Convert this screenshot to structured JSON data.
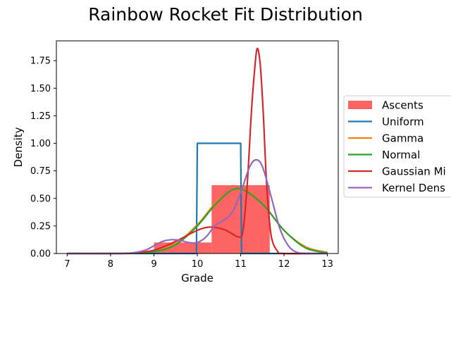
{
  "chart_data": {
    "type": "line",
    "title": "Rainbow Rocket Fit Distribution",
    "xlabel": "Grade",
    "ylabel": "Density",
    "xlim": [
      6.75,
      13.25
    ],
    "ylim": [
      0,
      1.93
    ],
    "xticks": [
      7,
      8,
      9,
      10,
      11,
      12,
      13
    ],
    "yticks": [
      0.0,
      0.25,
      0.5,
      0.75,
      1.0,
      1.25,
      1.5,
      1.75
    ],
    "grid": false,
    "legend_position": "right, outside plot",
    "histogram": {
      "name": "Ascents",
      "color": "#ff6464",
      "bins": [
        {
          "x0": 9.0,
          "x1": 10.33,
          "density": 0.1
        },
        {
          "x0": 10.33,
          "x1": 11.67,
          "density": 0.62
        }
      ]
    },
    "series": [
      {
        "name": "Uniform",
        "color": "#1f77b4",
        "x": [
          7.0,
          9.98,
          10.0,
          10.02,
          10.98,
          11.0,
          11.02,
          13.0
        ],
        "y": [
          0,
          0,
          1.0,
          1.0,
          1.0,
          1.0,
          0,
          0
        ]
      },
      {
        "name": "Gamma",
        "color": "#ff7f0e",
        "x": [
          7.0,
          8.0,
          8.5,
          9.0,
          9.5,
          10.0,
          10.5,
          11.0,
          11.5,
          12.0,
          12.5,
          13.0
        ],
        "y": [
          0.0,
          0.0,
          0.002,
          0.02,
          0.09,
          0.26,
          0.49,
          0.59,
          0.45,
          0.21,
          0.06,
          0.01
        ]
      },
      {
        "name": "Normal",
        "color": "#2ca02c",
        "x": [
          7.0,
          8.0,
          8.5,
          9.0,
          9.5,
          10.0,
          10.5,
          10.95,
          11.5,
          12.0,
          12.5,
          13.0
        ],
        "y": [
          0.0,
          0.0,
          0.002,
          0.016,
          0.08,
          0.25,
          0.48,
          0.59,
          0.45,
          0.21,
          0.05,
          0.006
        ]
      },
      {
        "name": "Gaussian Mi",
        "color": "#d62728",
        "x": [
          7.0,
          8.0,
          8.5,
          9.0,
          9.5,
          10.0,
          10.3,
          10.6,
          10.8,
          10.95,
          11.05,
          11.15,
          11.25,
          11.32,
          11.38,
          11.45,
          11.52,
          11.6,
          11.7,
          11.85,
          12.0,
          13.0
        ],
        "y": [
          0.0,
          0.0,
          0.004,
          0.03,
          0.11,
          0.21,
          0.24,
          0.22,
          0.18,
          0.15,
          0.2,
          0.62,
          1.3,
          1.66,
          1.86,
          1.72,
          1.28,
          0.62,
          0.17,
          0.02,
          0.0,
          0.0
        ]
      },
      {
        "name": "Kernel Dens",
        "color": "#9467bd",
        "x": [
          7.0,
          8.0,
          8.5,
          8.8,
          9.0,
          9.2,
          9.4,
          9.6,
          9.8,
          10.0,
          10.2,
          10.4,
          10.6,
          10.8,
          11.0,
          11.2,
          11.35,
          11.5,
          11.7,
          11.9,
          12.1,
          12.3,
          12.5,
          13.0
        ],
        "y": [
          0.0,
          0.0,
          0.006,
          0.03,
          0.07,
          0.11,
          0.125,
          0.12,
          0.1,
          0.1,
          0.15,
          0.25,
          0.3,
          0.37,
          0.55,
          0.78,
          0.85,
          0.79,
          0.52,
          0.23,
          0.07,
          0.01,
          0.002,
          0.0
        ]
      }
    ]
  }
}
